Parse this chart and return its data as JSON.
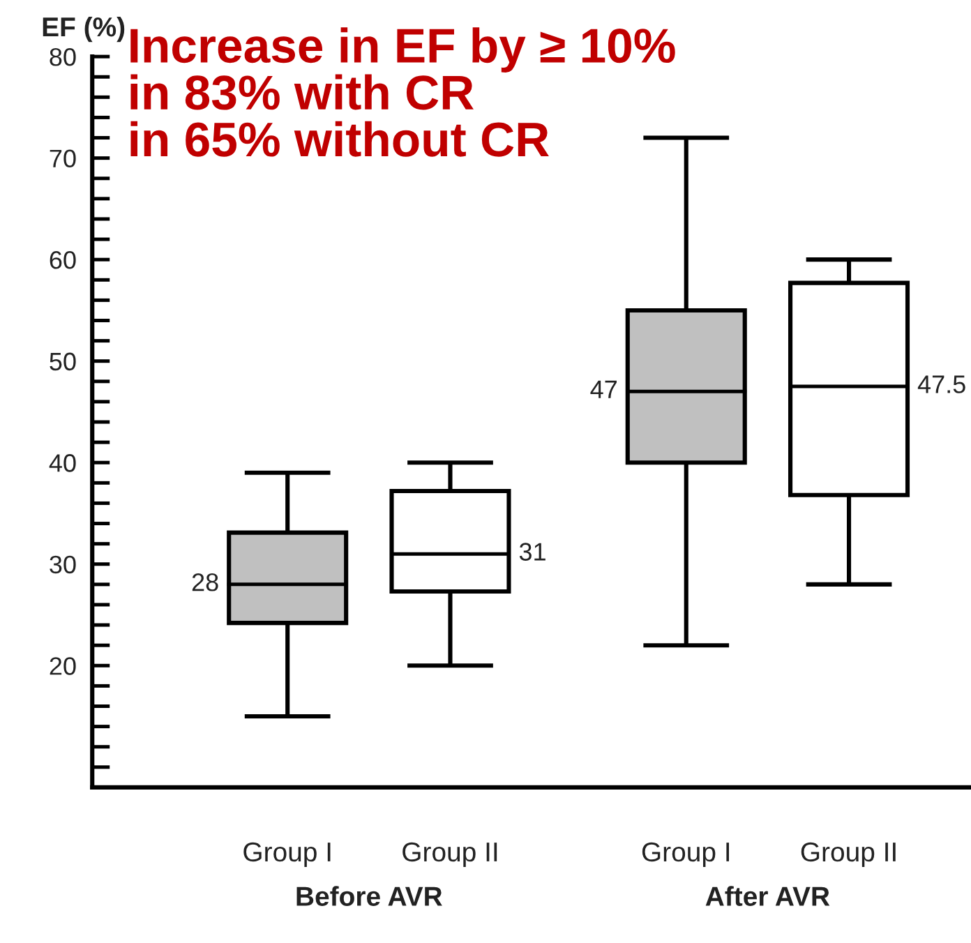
{
  "chart_data": {
    "type": "box",
    "title": "Increase in EF by ≥ 10%\nin 83% with CR\nin 65% without CR",
    "ylabel": "EF (%)",
    "categories": [
      "Group I",
      "Group II",
      "Group I",
      "Group II"
    ],
    "annotations": [
      "Before AVR",
      "After AVR"
    ],
    "colors": [
      "#c0c0c0",
      "#ffffff",
      "#c0c0c0",
      "#ffffff"
    ],
    "boxes": [
      {
        "low": 15,
        "q1": 24.2,
        "median": 28,
        "q3": 33.1,
        "high": 39
      },
      {
        "low": 20,
        "q1": 27.3,
        "median": 31,
        "q3": 37.2,
        "high": 40
      },
      {
        "low": 22,
        "q1": 40,
        "median": 47,
        "q3": 55,
        "high": 72
      },
      {
        "low": 28,
        "q1": 36.8,
        "median": 47.5,
        "q3": 57.7,
        "high": 60
      }
    ],
    "value_labels": [
      "28",
      "31",
      "47",
      "47.5"
    ],
    "ylim": [
      8,
      80
    ],
    "yticks": [
      {
        "value": 10,
        "label": null
      },
      {
        "value": 12,
        "label": null
      },
      {
        "value": 14,
        "label": null
      },
      {
        "value": 16,
        "label": null
      },
      {
        "value": 18,
        "label": null
      },
      20,
      {
        "value": 22,
        "label": null
      },
      {
        "value": 24,
        "label": null
      },
      {
        "value": 26,
        "label": null
      },
      {
        "value": 28,
        "label": null
      },
      30,
      {
        "value": 32,
        "label": null
      },
      {
        "value": 34,
        "label": null
      },
      {
        "value": 36,
        "label": null
      },
      {
        "value": 38,
        "label": null
      },
      40,
      {
        "value": 42,
        "label": null
      },
      {
        "value": 44,
        "label": null
      },
      {
        "value": 46,
        "label": null
      },
      {
        "value": 48,
        "label": null
      },
      50,
      {
        "value": 52,
        "label": null
      },
      {
        "value": 54,
        "label": null
      },
      {
        "value": 56,
        "label": null
      },
      {
        "value": 58,
        "label": null
      },
      60,
      {
        "value": 62,
        "label": null
      },
      {
        "value": 64,
        "label": null
      },
      {
        "value": 66,
        "label": null
      },
      {
        "value": 68,
        "label": null
      },
      70,
      {
        "value": 72,
        "label": null
      },
      {
        "value": 74,
        "label": null
      },
      {
        "value": 76,
        "label": null
      },
      {
        "value": 78,
        "label": null
      },
      80
    ],
    "grid": false
  }
}
